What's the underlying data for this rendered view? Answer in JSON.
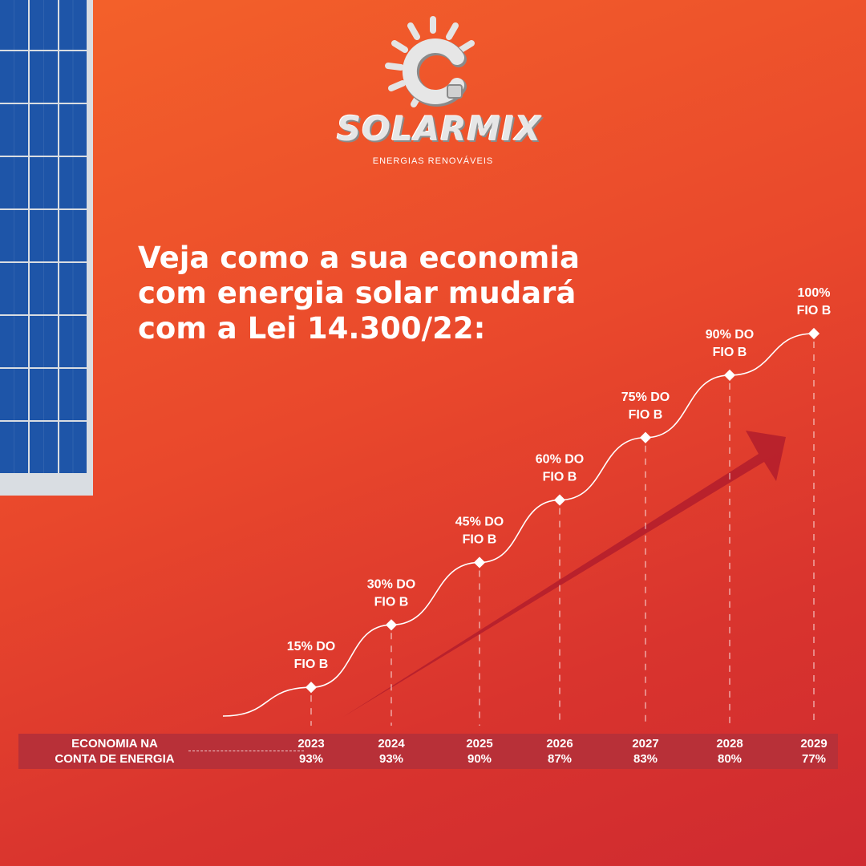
{
  "brand": {
    "logo_icon": "sun-bulb-icon",
    "name": "SOLARMIX",
    "tagline": "ENERGIAS RENOVÁVEIS"
  },
  "headline": {
    "lines": [
      "Veja como a sua economia",
      "com energia solar mudará",
      "com a Lei 14.300/22:"
    ]
  },
  "colors": {
    "background_top": "#f4622a",
    "background_bottom": "#cf2a30",
    "band": "#b83038",
    "arrow": "#b5202c",
    "text": "#ffffff",
    "panel_cell": "#1e55a8"
  },
  "decor": {
    "solar_panel_icon": "solar-panel-icon",
    "arrow_icon": "trend-arrow-icon"
  },
  "chart_data": {
    "type": "line",
    "series": [
      {
        "values": [
          15,
          30,
          45,
          60,
          75,
          90,
          100
        ],
        "labels": [
          [
            "15% DO",
            "FIO B"
          ],
          [
            "30% DO",
            "FIO B"
          ],
          [
            "45% DO",
            "FIO B"
          ],
          [
            "60% DO",
            "FIO B"
          ],
          [
            "75% DO",
            "FIO B"
          ],
          [
            "90% DO",
            "FIO B"
          ],
          [
            "100%",
            "FIO B"
          ]
        ]
      }
    ],
    "x": [
      "2023",
      "2024",
      "2025",
      "2026",
      "2027",
      "2028",
      "2029"
    ],
    "ylim": [
      0,
      100
    ],
    "grid": false,
    "table": {
      "row_label": [
        "ECONOMIA NA",
        "CONTA DE ENERGIA"
      ],
      "years": [
        "2023",
        "2024",
        "2025",
        "2026",
        "2027",
        "2028",
        "2029"
      ],
      "savings": [
        "93%",
        "93%",
        "90%",
        "87%",
        "83%",
        "80%",
        "77%"
      ]
    }
  }
}
